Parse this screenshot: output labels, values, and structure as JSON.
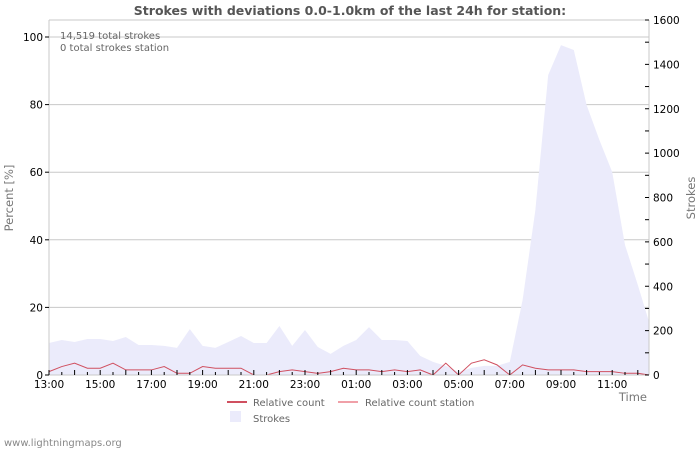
{
  "title": "Strokes with deviations 0.0-1.0km of the last 24h for station:",
  "info": {
    "total_strokes": "14,519 total strokes",
    "total_strokes_station": "0 total strokes station"
  },
  "footer": "www.lightningmaps.org",
  "colors": {
    "relative_count": "#d05060",
    "relative_count_station": "#f0a0a8",
    "strokes_fill": "#ebebfb",
    "grid": "#c8c8c8",
    "frame": "#c8c8c8"
  },
  "chart_data": {
    "type": "area",
    "title": "Strokes with deviations 0.0-1.0km of the last 24h for station:",
    "xlabel": "Time",
    "ylabel": "Percent   [%]",
    "ylabel_right": "Strokes",
    "ylim": [
      0,
      100
    ],
    "ylim_right": [
      0,
      1600
    ],
    "yticks": [
      "0",
      "20",
      "40",
      "60",
      "80",
      "100"
    ],
    "yticks_right": [
      "0",
      "200",
      "400",
      "600",
      "800",
      "1000",
      "1200",
      "1400",
      "1600"
    ],
    "xticks": [
      "13:00",
      "15:00",
      "17:00",
      "19:00",
      "21:00",
      "23:00",
      "01:00",
      "03:00",
      "05:00",
      "07:00",
      "09:00",
      "11:00"
    ],
    "grid": true,
    "legend_position": "bottom",
    "legend": [
      "Relative count",
      "Relative count station",
      "Strokes"
    ],
    "x": [
      "13:00",
      "13:30",
      "14:00",
      "14:30",
      "15:00",
      "15:30",
      "16:00",
      "16:30",
      "17:00",
      "17:30",
      "18:00",
      "18:30",
      "19:00",
      "19:30",
      "20:00",
      "20:30",
      "21:00",
      "21:30",
      "22:00",
      "22:30",
      "23:00",
      "23:30",
      "00:00",
      "00:30",
      "01:00",
      "01:30",
      "02:00",
      "02:30",
      "03:00",
      "03:30",
      "04:00",
      "04:30",
      "05:00",
      "05:30",
      "06:00",
      "06:30",
      "07:00",
      "07:30",
      "08:00",
      "08:30",
      "09:00",
      "09:30",
      "10:00",
      "10:30",
      "11:00",
      "11:30",
      "12:00",
      "12:30"
    ],
    "series": [
      {
        "name": "Strokes",
        "axis": "right",
        "type": "area",
        "values": [
          144,
          158,
          149,
          162,
          162,
          153,
          171,
          135,
          135,
          131,
          122,
          207,
          131,
          122,
          149,
          176,
          144,
          144,
          221,
          131,
          203,
          126,
          95,
          131,
          158,
          216,
          158,
          158,
          153,
          86,
          59,
          41,
          14,
          32,
          41,
          41,
          59,
          338,
          744,
          1352,
          1487,
          1465,
          1217,
          1059,
          915,
          586,
          406,
          240
        ]
      },
      {
        "name": "Relative count",
        "axis": "left",
        "type": "line",
        "values": [
          1.0,
          2.5,
          3.5,
          2.0,
          2.0,
          3.5,
          1.5,
          1.5,
          1.5,
          2.5,
          0.5,
          0.5,
          2.5,
          2.0,
          2.0,
          2.0,
          0.0,
          0.0,
          1.0,
          1.5,
          1.0,
          0.5,
          1.0,
          2.0,
          1.5,
          1.5,
          1.0,
          1.5,
          1.0,
          1.5,
          0.0,
          3.5,
          0.0,
          3.5,
          4.5,
          3.0,
          0.0,
          3.0,
          2.0,
          1.5,
          1.5,
          1.5,
          1.0,
          1.0,
          1.0,
          0.5,
          0.5,
          0.0
        ]
      },
      {
        "name": "Relative count station",
        "axis": "left",
        "type": "line",
        "values": []
      }
    ]
  }
}
